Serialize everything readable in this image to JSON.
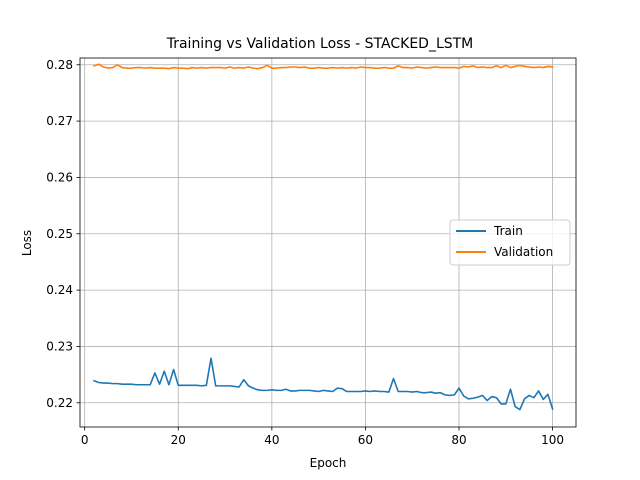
{
  "chart_data": {
    "type": "line",
    "title": "Training vs Validation Loss - STACKED_LSTM",
    "xlabel": "Epoch",
    "ylabel": "Loss",
    "xlim": [
      -1,
      105
    ],
    "ylim": [
      0.2157,
      0.2812
    ],
    "xticks": [
      0,
      20,
      40,
      60,
      80,
      100
    ],
    "yticks": [
      0.22,
      0.23,
      0.24,
      0.25,
      0.26,
      0.27,
      0.28
    ],
    "grid": true,
    "legend_position": "center-right",
    "series": [
      {
        "name": "Train",
        "color": "#1f77b4",
        "x": [
          2,
          3,
          4,
          5,
          6,
          7,
          8,
          9,
          10,
          11,
          12,
          13,
          14,
          15,
          16,
          17,
          18,
          19,
          20,
          21,
          22,
          23,
          24,
          25,
          26,
          27,
          28,
          29,
          30,
          31,
          32,
          33,
          34,
          35,
          36,
          37,
          38,
          39,
          40,
          41,
          42,
          43,
          44,
          45,
          46,
          47,
          48,
          49,
          50,
          51,
          52,
          53,
          54,
          55,
          56,
          57,
          58,
          59,
          60,
          61,
          62,
          63,
          64,
          65,
          66,
          67,
          68,
          69,
          70,
          71,
          72,
          73,
          74,
          75,
          76,
          77,
          78,
          79,
          80,
          81,
          82,
          83,
          84,
          85,
          86,
          87,
          88,
          89,
          90,
          91,
          92,
          93,
          94,
          95,
          96,
          97,
          98,
          99,
          100
        ],
        "y": [
          0.2239,
          0.2236,
          0.2235,
          0.2235,
          0.2234,
          0.2234,
          0.2233,
          0.2233,
          0.2233,
          0.2232,
          0.2232,
          0.2232,
          0.2232,
          0.2253,
          0.2233,
          0.2256,
          0.2232,
          0.2259,
          0.2231,
          0.2231,
          0.2231,
          0.2231,
          0.2231,
          0.223,
          0.2231,
          0.2279,
          0.223,
          0.223,
          0.223,
          0.223,
          0.2229,
          0.2228,
          0.2241,
          0.223,
          0.2226,
          0.2223,
          0.2222,
          0.2222,
          0.2223,
          0.2222,
          0.2222,
          0.2224,
          0.2221,
          0.2221,
          0.2222,
          0.2222,
          0.2222,
          0.2221,
          0.222,
          0.2222,
          0.2221,
          0.222,
          0.2226,
          0.2225,
          0.222,
          0.222,
          0.222,
          0.222,
          0.2221,
          0.222,
          0.2221,
          0.222,
          0.222,
          0.2219,
          0.2243,
          0.222,
          0.222,
          0.222,
          0.2219,
          0.222,
          0.2218,
          0.2218,
          0.2219,
          0.2217,
          0.2218,
          0.2214,
          0.2213,
          0.2214,
          0.2226,
          0.2212,
          0.2207,
          0.2208,
          0.221,
          0.2213,
          0.2204,
          0.2211,
          0.2209,
          0.2198,
          0.2198,
          0.2224,
          0.2193,
          0.2188,
          0.2207,
          0.2213,
          0.2209,
          0.2221,
          0.2206,
          0.2215,
          0.2189
        ]
      },
      {
        "name": "Validation",
        "color": "#ff7f0e",
        "x": [
          2,
          3,
          4,
          5,
          6,
          7,
          8,
          9,
          10,
          11,
          12,
          13,
          14,
          15,
          16,
          17,
          18,
          19,
          20,
          21,
          22,
          23,
          24,
          25,
          26,
          27,
          28,
          29,
          30,
          31,
          32,
          33,
          34,
          35,
          36,
          37,
          38,
          39,
          40,
          41,
          42,
          43,
          44,
          45,
          46,
          47,
          48,
          49,
          50,
          51,
          52,
          53,
          54,
          55,
          56,
          57,
          58,
          59,
          60,
          61,
          62,
          63,
          64,
          65,
          66,
          67,
          68,
          69,
          70,
          71,
          72,
          73,
          74,
          75,
          76,
          77,
          78,
          79,
          80,
          81,
          82,
          83,
          84,
          85,
          86,
          87,
          88,
          89,
          90,
          91,
          92,
          93,
          94,
          95,
          96,
          97,
          98,
          99,
          100
        ],
        "y": [
          0.2798,
          0.2801,
          0.2796,
          0.2794,
          0.2795,
          0.28,
          0.2795,
          0.2794,
          0.2794,
          0.2795,
          0.2795,
          0.2794,
          0.2795,
          0.2794,
          0.2794,
          0.2794,
          0.2793,
          0.2795,
          0.2794,
          0.2794,
          0.2793,
          0.2795,
          0.2794,
          0.2795,
          0.2794,
          0.2795,
          0.2795,
          0.2795,
          0.2794,
          0.2796,
          0.2794,
          0.2795,
          0.2794,
          0.2796,
          0.2794,
          0.2793,
          0.2795,
          0.2799,
          0.2794,
          0.2794,
          0.2795,
          0.2795,
          0.2796,
          0.2796,
          0.2795,
          0.2796,
          0.2794,
          0.2794,
          0.2795,
          0.2794,
          0.2794,
          0.2795,
          0.2794,
          0.2795,
          0.2794,
          0.2795,
          0.2794,
          0.2796,
          0.2795,
          0.2795,
          0.2794,
          0.2794,
          0.2795,
          0.2794,
          0.2794,
          0.2798,
          0.2795,
          0.2795,
          0.2794,
          0.2796,
          0.2795,
          0.2794,
          0.2795,
          0.2796,
          0.2795,
          0.2795,
          0.2795,
          0.2795,
          0.2794,
          0.2797,
          0.2796,
          0.2798,
          0.2795,
          0.2796,
          0.2795,
          0.2795,
          0.2798,
          0.2795,
          0.2799,
          0.2795,
          0.2797,
          0.2799,
          0.2797,
          0.2796,
          0.2795,
          0.2796,
          0.2795,
          0.2797,
          0.2796
        ]
      }
    ]
  }
}
